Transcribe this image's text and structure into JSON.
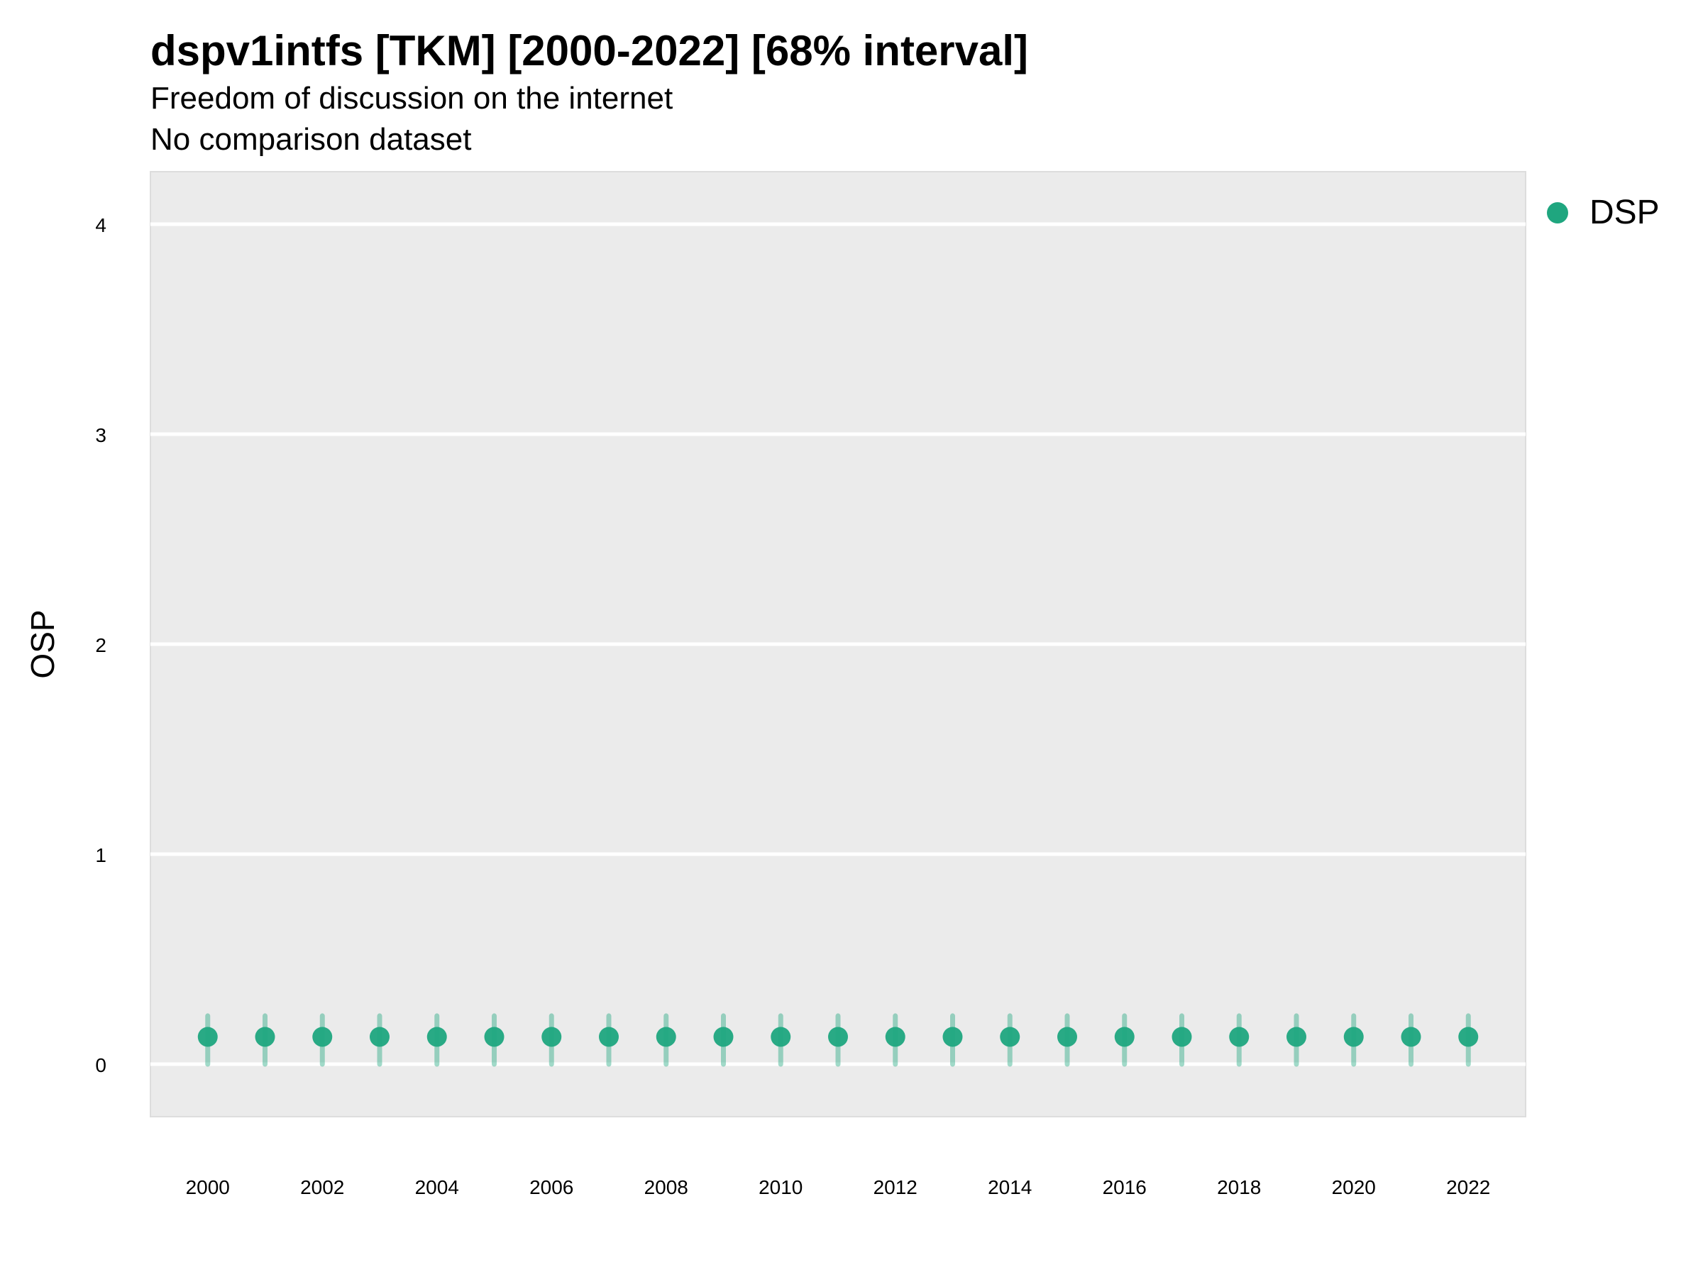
{
  "chart_data": {
    "type": "scatter",
    "title": "dspv1intfs [TKM] [2000-2022] [68% interval]",
    "subtitle_lines": [
      "Freedom of discussion on the internet",
      "No comparison dataset"
    ],
    "xlabel": "",
    "ylabel": "OSP",
    "xlim": [
      1999,
      2023
    ],
    "ylim": [
      -0.25,
      4.25
    ],
    "grid": true,
    "legend_position": "right",
    "x_ticks": [
      2000,
      2002,
      2004,
      2006,
      2008,
      2010,
      2012,
      2014,
      2016,
      2018,
      2020,
      2022
    ],
    "y_ticks": [
      0,
      1,
      2,
      3,
      4
    ],
    "series": [
      {
        "name": "DSP",
        "color": "#1fa67f",
        "x": [
          2000,
          2001,
          2002,
          2003,
          2004,
          2005,
          2006,
          2007,
          2008,
          2009,
          2010,
          2011,
          2012,
          2013,
          2014,
          2015,
          2016,
          2017,
          2018,
          2019,
          2020,
          2021,
          2022
        ],
        "y": [
          0.13,
          0.13,
          0.13,
          0.13,
          0.13,
          0.13,
          0.13,
          0.13,
          0.13,
          0.13,
          0.13,
          0.13,
          0.13,
          0.13,
          0.13,
          0.13,
          0.13,
          0.13,
          0.13,
          0.13,
          0.13,
          0.13,
          0.13
        ],
        "lower": [
          0.0,
          0.0,
          0.0,
          0.0,
          0.0,
          0.0,
          0.0,
          0.0,
          0.0,
          0.0,
          0.0,
          0.0,
          0.0,
          0.0,
          0.0,
          0.0,
          0.0,
          0.0,
          0.0,
          0.0,
          0.0,
          0.0,
          0.0
        ],
        "upper": [
          0.23,
          0.23,
          0.23,
          0.23,
          0.23,
          0.23,
          0.23,
          0.23,
          0.23,
          0.23,
          0.23,
          0.23,
          0.23,
          0.23,
          0.23,
          0.23,
          0.23,
          0.23,
          0.23,
          0.23,
          0.23,
          0.23,
          0.23
        ]
      }
    ]
  },
  "colors": {
    "panel_background": "#ebebeb",
    "grid": "#ffffff",
    "point": "#1fa67f"
  }
}
